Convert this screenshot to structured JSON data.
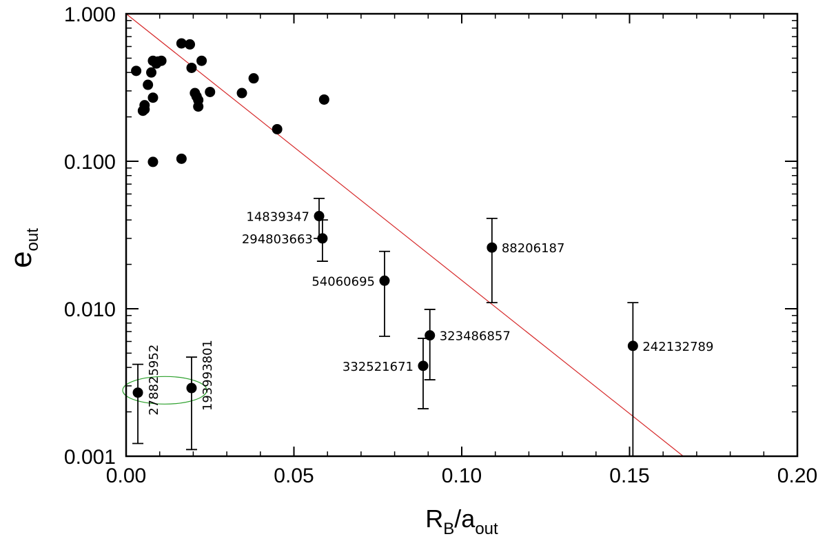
{
  "chart_data": {
    "type": "scatter",
    "title": "",
    "xlabel": {
      "main": "R",
      "sub1": "B",
      "slash": "/a",
      "sub2": "out"
    },
    "ylabel": {
      "main": "e",
      "sub": "out"
    },
    "x_scale": "linear",
    "y_scale": "log",
    "xlim": [
      0.0,
      0.2
    ],
    "ylim": [
      0.001,
      1.0
    ],
    "x_ticks": [
      0.0,
      0.05,
      0.1,
      0.15,
      0.2
    ],
    "x_tick_labels": [
      "0.00",
      "0.05",
      "0.10",
      "0.15",
      "0.20"
    ],
    "y_ticks": [
      0.001,
      0.01,
      0.1,
      1.0
    ],
    "y_tick_labels": [
      "0.001",
      "0.010",
      "0.100",
      "1.000"
    ],
    "grid": false,
    "trend_line": {
      "color": "#d62728",
      "x": [
        0.0,
        0.166
      ],
      "y": [
        1.0,
        0.001
      ]
    },
    "points": [
      {
        "x": 0.003,
        "y": 0.41
      },
      {
        "x": 0.005,
        "y": 0.22
      },
      {
        "x": 0.0055,
        "y": 0.24
      },
      {
        "x": 0.0055,
        "y": 0.225
      },
      {
        "x": 0.0065,
        "y": 0.33
      },
      {
        "x": 0.0075,
        "y": 0.4
      },
      {
        "x": 0.008,
        "y": 0.48
      },
      {
        "x": 0.008,
        "y": 0.27
      },
      {
        "x": 0.008,
        "y": 0.099
      },
      {
        "x": 0.009,
        "y": 0.46
      },
      {
        "x": 0.0095,
        "y": 0.475
      },
      {
        "x": 0.0105,
        "y": 0.48
      },
      {
        "x": 0.0165,
        "y": 0.63
      },
      {
        "x": 0.0165,
        "y": 0.104
      },
      {
        "x": 0.019,
        "y": 0.62
      },
      {
        "x": 0.0195,
        "y": 0.43
      },
      {
        "x": 0.0205,
        "y": 0.29
      },
      {
        "x": 0.021,
        "y": 0.275
      },
      {
        "x": 0.0215,
        "y": 0.26
      },
      {
        "x": 0.0215,
        "y": 0.235
      },
      {
        "x": 0.0225,
        "y": 0.48
      },
      {
        "x": 0.025,
        "y": 0.295
      },
      {
        "x": 0.0345,
        "y": 0.29
      },
      {
        "x": 0.038,
        "y": 0.365
      },
      {
        "x": 0.045,
        "y": 0.165
      },
      {
        "x": 0.059,
        "y": 0.262
      },
      {
        "x": 0.0575,
        "y": 0.0425,
        "err": [
          0.03,
          0.056
        ],
        "label": "14839347",
        "label_pos": "left"
      },
      {
        "x": 0.0585,
        "y": 0.03,
        "err": [
          0.021,
          0.04
        ],
        "label": "294803663",
        "label_pos": "left"
      },
      {
        "x": 0.077,
        "y": 0.0155,
        "err": [
          0.0065,
          0.0245
        ],
        "label": "54060695",
        "label_pos": "left"
      },
      {
        "x": 0.109,
        "y": 0.026,
        "err": [
          0.011,
          0.041
        ],
        "label": "88206187",
        "label_pos": "right"
      },
      {
        "x": 0.0885,
        "y": 0.0041,
        "err": [
          0.0021,
          0.0063
        ],
        "label": "332521671",
        "label_pos": "left"
      },
      {
        "x": 0.0905,
        "y": 0.0066,
        "err": [
          0.0033,
          0.0099
        ],
        "label": "323486857",
        "label_pos": "right"
      },
      {
        "x": 0.151,
        "y": 0.0056,
        "err": [
          0.001,
          0.011
        ],
        "label": "242132789",
        "label_pos": "right"
      },
      {
        "x": 0.0035,
        "y": 0.0027,
        "err": [
          0.00122,
          0.0042
        ],
        "label": "278825952",
        "label_pos": "rotated"
      },
      {
        "x": 0.0195,
        "y": 0.0029,
        "err": [
          0.00111,
          0.0047
        ],
        "label": "193993801",
        "label_pos": "rotated"
      }
    ],
    "highlight_ellipse": {
      "color": "#2ca02c",
      "center": [
        0.0115,
        0.0028
      ]
    }
  }
}
